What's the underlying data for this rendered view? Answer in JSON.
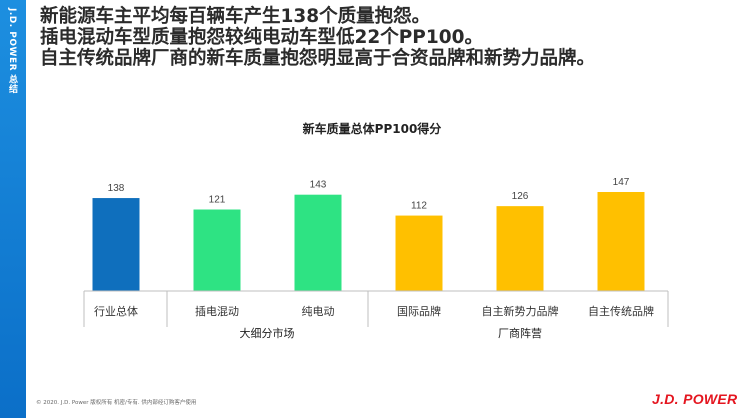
{
  "sidebar": {
    "label": "J.D. POWER 总结"
  },
  "headline": {
    "lines": [
      "新能源车主平均每百辆车产生138个质量抱怨。",
      "插电混动车型质量抱怨较纯电动车型低22个PP100。",
      "自主传统品牌厂商的新车质量抱怨明显高于合资品牌和新势力品牌。"
    ]
  },
  "chart_data": {
    "type": "bar",
    "title": "新车质量总体PP100得分",
    "categories": [
      "行业总体",
      "插电混动",
      "纯电动",
      "国际品牌",
      "自主新势力品牌",
      "自主传统品牌"
    ],
    "values": [
      138,
      121,
      143,
      112,
      126,
      147
    ],
    "colors": [
      "#0f6fbd",
      "#2ee383",
      "#2ee383",
      "#ffc000",
      "#ffc000",
      "#ffc000"
    ],
    "groups": [
      {
        "label": "大细分市场",
        "categories": [
          "插电混动",
          "纯电动"
        ]
      },
      {
        "label": "厂商阵营",
        "categories": [
          "国际品牌",
          "自主新势力品牌",
          "自主传统品牌"
        ]
      }
    ],
    "ylim": [
      0,
      147
    ],
    "grid": false,
    "legend": "none"
  },
  "footer": {
    "copyright": "© 2020. J.D. Power 版权所有 机密/专有. 供内部经订购客户使用",
    "logo": "J.D. POWER"
  }
}
